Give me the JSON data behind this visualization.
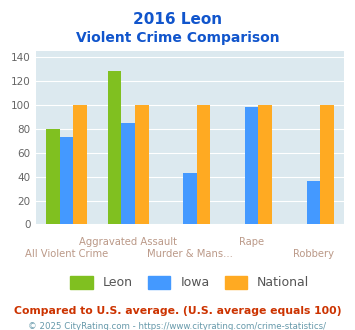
{
  "title_line1": "2016 Leon",
  "title_line2": "Violent Crime Comparison",
  "categories": [
    "All Violent Crime",
    "Aggravated Assault",
    "Murder & Mans...",
    "Rape",
    "Robbery"
  ],
  "row1_labels": [
    "Aggravated Assault",
    "Rape"
  ],
  "row2_labels": [
    "All Violent Crime",
    "Murder & Mans...",
    "Robbery"
  ],
  "row1_indices": [
    1,
    3
  ],
  "row2_indices": [
    0,
    2,
    4
  ],
  "series": {
    "Leon": [
      80,
      128,
      0,
      0,
      0
    ],
    "Iowa": [
      73,
      85,
      43,
      98,
      36
    ],
    "National": [
      100,
      100,
      100,
      100,
      100
    ]
  },
  "colors": {
    "Leon": "#80c020",
    "Iowa": "#4499ff",
    "National": "#ffaa22"
  },
  "ylim": [
    0,
    145
  ],
  "yticks": [
    0,
    20,
    40,
    60,
    80,
    100,
    120,
    140
  ],
  "footer_note": "Compared to U.S. average. (U.S. average equals 100)",
  "footer_credit": "© 2025 CityRating.com - https://www.cityrating.com/crime-statistics/",
  "bg_color": "#dce9ef",
  "title_color": "#1155cc",
  "xlabel_color": "#bb9988",
  "footer_note_color": "#cc3300",
  "footer_credit_color": "#6699aa"
}
